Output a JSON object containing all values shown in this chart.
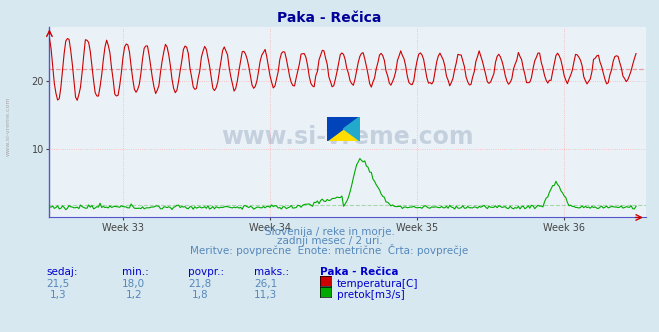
{
  "title": "Paka - Rečica",
  "title_color": "#000099",
  "bg_color": "#d8e8f0",
  "plot_bg_color": "#eaf2f8",
  "grid_color": "#ffaaaa",
  "x_tick_labels": [
    "Week 33",
    "Week 34",
    "Week 35",
    "Week 36"
  ],
  "y_ticks": [
    10,
    20
  ],
  "ylim": [
    0,
    28
  ],
  "n_points": 360,
  "temp_color": "#cc0000",
  "flow_color": "#00aa00",
  "avg_temp_color": "#ee8888",
  "avg_flow_color": "#88cc88",
  "avg_temp": 21.8,
  "avg_flow": 1.8,
  "subtitle1": "Slovenija / reke in morje.",
  "subtitle2": "zadnji mesec / 2 uri.",
  "subtitle3": "Meritve: povprečne  Enote: metrične  Črta: povprečje",
  "subtitle_color": "#5588bb",
  "table_header": [
    "sedaj:",
    "min.:",
    "povpr.:",
    "maks.:",
    "Paka - Rečica"
  ],
  "table_color": "#0000cc",
  "table_values1": [
    "21,5",
    "18,0",
    "21,8",
    "26,1"
  ],
  "table_values2": [
    "1,3",
    "1,2",
    "1,8",
    "11,3"
  ],
  "legend_label1": "temperatura[C]",
  "legend_label2": "pretok[m3/s]",
  "left_label": "www.si-vreme.com",
  "watermark": "www.si-vreme.com"
}
